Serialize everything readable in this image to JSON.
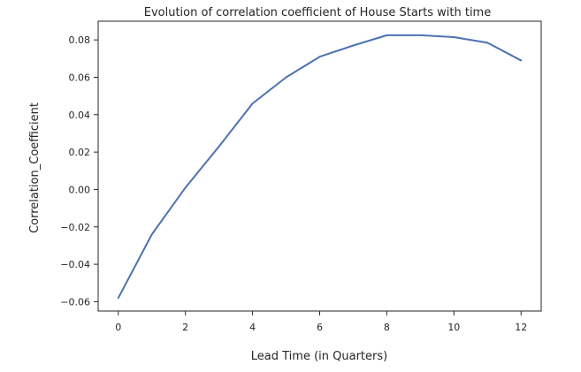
{
  "chart_data": {
    "type": "line",
    "title": "Evolution of correlation coefficient of House Starts with time",
    "xlabel": "Lead Time (in Quarters)",
    "ylabel": "Correlation_Coefficient",
    "xlim": [
      -0.6,
      12.6
    ],
    "ylim": [
      -0.065,
      0.09
    ],
    "x_ticks": [
      0,
      2,
      4,
      6,
      8,
      10,
      12
    ],
    "x_tick_labels": [
      "0",
      "2",
      "4",
      "6",
      "8",
      "10",
      "12"
    ],
    "y_ticks": [
      -0.06,
      -0.04,
      -0.02,
      0.0,
      0.02,
      0.04,
      0.06,
      0.08
    ],
    "y_tick_labels": [
      "−0.06",
      "−0.04",
      "−0.02",
      "0.00",
      "0.02",
      "0.04",
      "0.06",
      "0.08"
    ],
    "grid": false,
    "series": [
      {
        "color": "#4c72b0",
        "x": [
          0,
          1,
          2,
          3,
          4,
          5,
          6,
          7,
          8,
          9,
          10,
          11,
          12
        ],
        "y": [
          -0.058,
          -0.024,
          0.001,
          0.023,
          0.046,
          0.06,
          0.071,
          0.077,
          0.0825,
          0.0825,
          0.0815,
          0.0785,
          0.069
        ]
      }
    ]
  }
}
